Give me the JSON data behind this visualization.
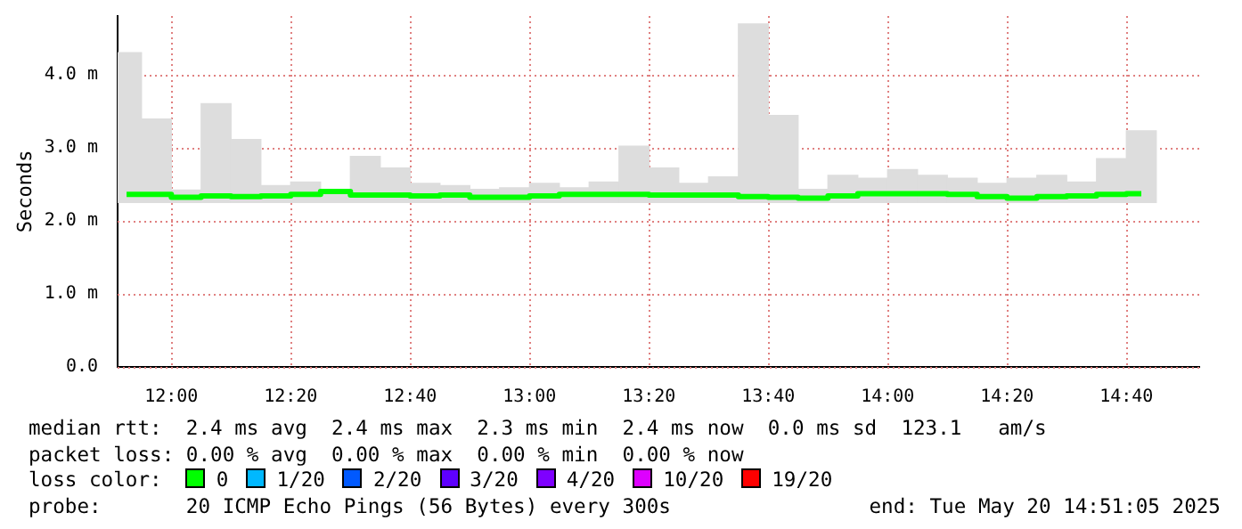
{
  "chart_data": {
    "type": "bar",
    "ylabel": "Seconds",
    "legend_title": "loss color:",
    "legend": "bottom",
    "grid": true,
    "x": [
      11.875,
      11.9583,
      12.0417,
      12.125,
      12.2083,
      12.2917,
      12.375,
      12.4583,
      12.5417,
      12.625,
      12.7083,
      12.7917,
      12.875,
      12.9583,
      13.0417,
      13.125,
      13.2083,
      13.2917,
      13.375,
      13.4583,
      13.5417,
      13.625,
      13.7083,
      13.7917,
      13.875,
      13.9583,
      14.0417,
      14.125,
      14.2083,
      14.2917,
      14.375,
      14.4583,
      14.5417,
      14.625,
      14.7083
    ],
    "series": [
      {
        "color": "#dddddd",
        "base": [
          2.25,
          2.25,
          2.25,
          2.25,
          2.25,
          2.25,
          2.25,
          2.25,
          2.25,
          2.25,
          2.25,
          2.25,
          2.25,
          2.25,
          2.25,
          2.25,
          2.25,
          2.25,
          2.25,
          2.25,
          2.25,
          2.25,
          2.25,
          2.25,
          2.25,
          2.25,
          2.25,
          2.25,
          2.25,
          2.25,
          2.25,
          2.25,
          2.25,
          2.25,
          2.25
        ],
        "values": [
          2.05,
          1.14,
          0.17,
          1.35,
          0.86,
          0.23,
          0.28,
          0.18,
          0.63,
          0.47,
          0.26,
          0.23,
          0.18,
          0.2,
          0.26,
          0.2,
          0.28,
          0.77,
          0.47,
          0.26,
          0.35,
          2.44,
          1.19,
          0.18,
          0.37,
          0.33,
          0.45,
          0.37,
          0.33,
          0.26,
          0.33,
          0.37,
          0.28,
          0.6,
          0.98
        ]
      },
      {
        "type": "step",
        "name": "0",
        "color": "#00ff00",
        "values": [
          2.36,
          2.36,
          2.32,
          2.34,
          2.33,
          2.34,
          2.36,
          2.4,
          2.35,
          2.35,
          2.34,
          2.35,
          2.32,
          2.32,
          2.34,
          2.36,
          2.36,
          2.36,
          2.35,
          2.35,
          2.35,
          2.33,
          2.32,
          2.31,
          2.34,
          2.37,
          2.37,
          2.37,
          2.36,
          2.33,
          2.31,
          2.33,
          2.34,
          2.36,
          2.37
        ]
      },
      {
        "type": "step",
        "name": "1/20",
        "color": "#00b8ff",
        "values": [
          null,
          null,
          null,
          null,
          null,
          null,
          null,
          null,
          null,
          null,
          null,
          null,
          null,
          null,
          null,
          null,
          null,
          null,
          null,
          null,
          null,
          null,
          null,
          null,
          null,
          null,
          null,
          null,
          null,
          null,
          null,
          null,
          null,
          null,
          null
        ]
      },
      {
        "type": "step",
        "name": "2/20",
        "color": "#0059ff",
        "values": [
          null,
          null,
          null,
          null,
          null,
          null,
          null,
          null,
          null,
          null,
          null,
          null,
          null,
          null,
          null,
          null,
          null,
          null,
          null,
          null,
          null,
          null,
          null,
          null,
          null,
          null,
          null,
          null,
          null,
          null,
          null,
          null,
          null,
          null,
          null
        ]
      },
      {
        "type": "step",
        "name": "3/20",
        "color": "#5e00ff",
        "values": [
          null,
          null,
          null,
          null,
          null,
          null,
          null,
          null,
          null,
          null,
          null,
          null,
          null,
          null,
          null,
          null,
          null,
          null,
          null,
          null,
          null,
          null,
          null,
          null,
          null,
          null,
          null,
          null,
          null,
          null,
          null,
          null,
          null,
          null,
          null
        ]
      },
      {
        "type": "step",
        "name": "4/20",
        "color": "#7e00ff",
        "values": [
          null,
          null,
          null,
          null,
          null,
          null,
          null,
          null,
          null,
          null,
          null,
          null,
          null,
          null,
          null,
          null,
          null,
          null,
          null,
          null,
          null,
          null,
          null,
          null,
          null,
          null,
          null,
          null,
          null,
          null,
          null,
          null,
          null,
          null,
          null
        ]
      },
      {
        "type": "step",
        "name": "10/20",
        "color": "#dd00ff",
        "values": [
          null,
          null,
          null,
          null,
          null,
          null,
          null,
          null,
          null,
          null,
          null,
          null,
          null,
          null,
          null,
          null,
          null,
          null,
          null,
          null,
          null,
          null,
          null,
          null,
          null,
          null,
          null,
          null,
          null,
          null,
          null,
          null,
          null,
          null,
          null
        ]
      },
      {
        "type": "step",
        "name": "19/20",
        "color": "#ff0000",
        "values": [
          null,
          null,
          null,
          null,
          null,
          null,
          null,
          null,
          null,
          null,
          null,
          null,
          null,
          null,
          null,
          null,
          null,
          null,
          null,
          null,
          null,
          null,
          null,
          null,
          null,
          null,
          null,
          null,
          null,
          null,
          null,
          null,
          null,
          null,
          null
        ]
      }
    ],
    "xlim": [
      11.85,
      14.87
    ],
    "xticks": [
      {
        "value": 12,
        "label": "12:00"
      },
      {
        "value": 12.3333,
        "label": "12:20"
      },
      {
        "value": 12.6667,
        "label": "12:40"
      },
      {
        "value": 13,
        "label": "13:00"
      },
      {
        "value": 13.3333,
        "label": "13:20"
      },
      {
        "value": 13.6667,
        "label": "13:40"
      },
      {
        "value": 14,
        "label": "14:00"
      },
      {
        "value": 14.3333,
        "label": "14:20"
      },
      {
        "value": 14.6667,
        "label": "14:40"
      }
    ],
    "ylim": [
      0,
      4.8
    ],
    "yticks": [
      {
        "value": 0,
        "label": "0.0"
      },
      {
        "value": 1,
        "label": "1.0 m"
      },
      {
        "value": 2,
        "label": "2.0 m"
      },
      {
        "value": 3,
        "label": "3.0 m"
      },
      {
        "value": 4,
        "label": "4.0 m"
      }
    ],
    "annotations": [
      "median rtt:  2.4 ms avg  2.4 ms max  2.3 ms min  2.4 ms now  0.0 ms sd  123.1   am/s",
      "packet loss: 0.00 % avg  0.00 % max  0.00 % min  0.00 % now",
      "probe:       20 ICMP Echo Pings (56 Bytes) every 300s",
      "end: Tue May 20 14:51:05 2025"
    ]
  }
}
